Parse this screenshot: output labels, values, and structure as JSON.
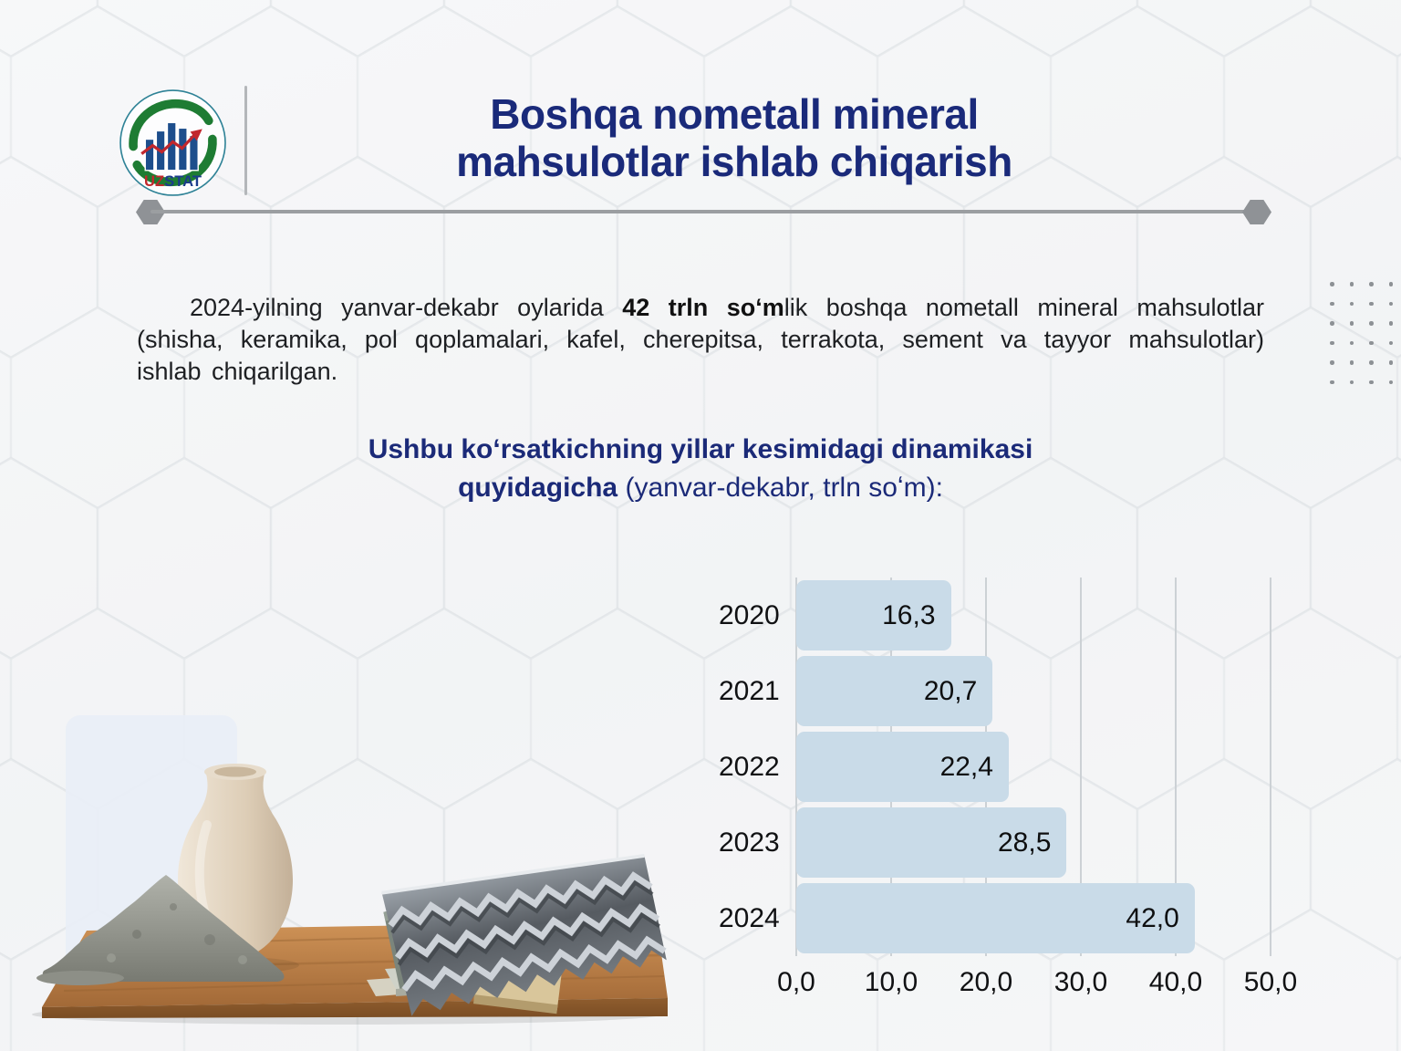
{
  "header": {
    "logo": {
      "uz": "UZ",
      "stat": "STAT"
    },
    "title_line1": "Boshqa nometall mineral",
    "title_line2": "mahsulotlar ishlab chiqarish"
  },
  "intro": {
    "lead": "2024-yilning yanvar-dekabr oylarida ",
    "highlight": "42 trln soʻm",
    "rest": "lik boshqa nometall mineral mahsulotlar (shisha, keramika, pol qoplamalari, kafel, cherepitsa, terrakota, sement va tayyor mahsulotlar) ishlab chiqarilgan."
  },
  "subtitle": {
    "line1": "Ushbu koʻrsatkichning yillar kesimidagi dinamikasi",
    "line2_bold": "quyidagicha",
    "line2_rest": " (yanvar-dekabr, trln soʻm):"
  },
  "chart_data": {
    "type": "bar",
    "orientation": "horizontal",
    "categories": [
      "2020",
      "2021",
      "2022",
      "2023",
      "2024"
    ],
    "values": [
      16.3,
      20.7,
      22.4,
      28.5,
      42.0
    ],
    "value_labels": [
      "16,3",
      "20,7",
      "22,4",
      "28,5",
      "42,0"
    ],
    "x_ticks": [
      "0,0",
      "10,0",
      "20,0",
      "30,0",
      "40,0",
      "50,0"
    ],
    "xlim": [
      0,
      50
    ],
    "grid": true,
    "legend": false,
    "bar_color": "#c9dbe8"
  },
  "colors": {
    "title_navy": "#1a2a7a",
    "divider_gray": "#9b9ea1",
    "bar_fill": "#c9dbe8",
    "gridline": "#ccd1d5",
    "logo_green": "#1e7c33",
    "logo_blue_bar": "#1d4e8c",
    "logo_red": "#c1272d"
  }
}
